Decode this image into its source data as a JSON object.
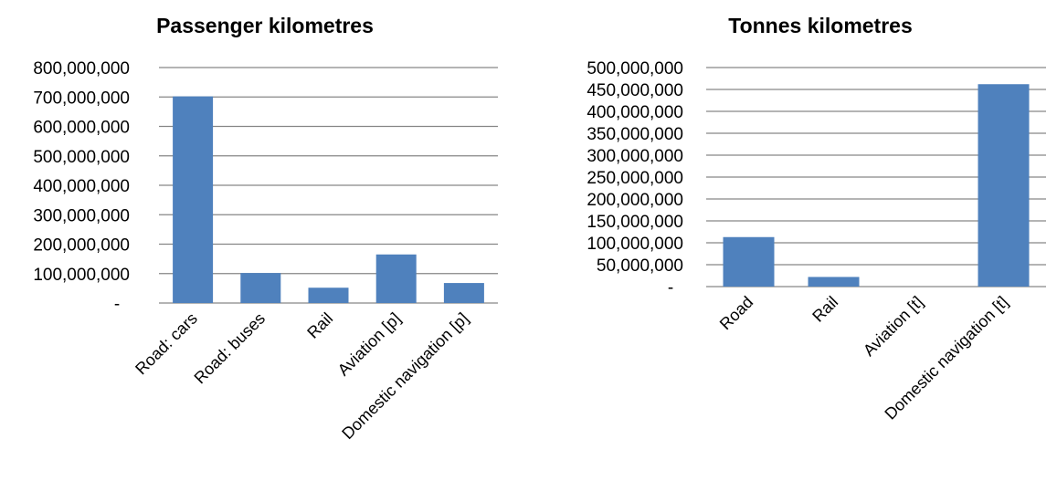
{
  "chart_data": [
    {
      "type": "bar",
      "title": "Passenger kilometres",
      "categories": [
        "Road: cars",
        "Road: buses",
        "Rail",
        "Aviation [p]",
        "Domestic navigation [p]"
      ],
      "values": [
        702000000,
        102000000,
        52000000,
        165000000,
        68000000
      ],
      "ylim": [
        0,
        800000000
      ],
      "yticks": [
        "-",
        "100,000,000",
        "200,000,000",
        "300,000,000",
        "400,000,000",
        "500,000,000",
        "600,000,000",
        "700,000,000",
        "800,000,000"
      ],
      "grid": true,
      "legend": "none",
      "bar_color": "#4f81bd"
    },
    {
      "type": "bar",
      "title": "Tonnes kilometres",
      "categories": [
        "Road",
        "Rail",
        "Aviation [t]",
        "Domestic navigation [t]"
      ],
      "values": [
        113000000,
        22000000,
        0,
        462000000
      ],
      "ylim": [
        0,
        500000000
      ],
      "yticks": [
        "-",
        "50,000,000",
        "100,000,000",
        "150,000,000",
        "200,000,000",
        "250,000,000",
        "300,000,000",
        "350,000,000",
        "400,000,000",
        "450,000,000",
        "500,000,000"
      ],
      "grid": true,
      "legend": "none",
      "bar_color": "#4f81bd"
    }
  ]
}
